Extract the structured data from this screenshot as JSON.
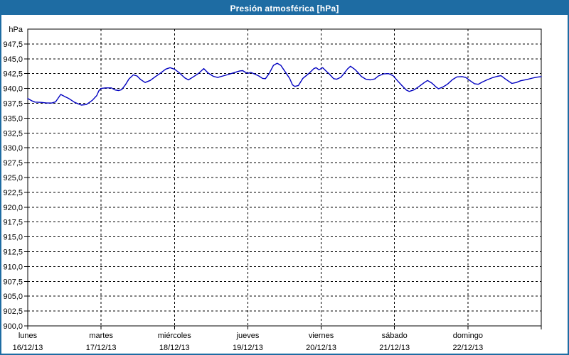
{
  "window": {
    "title": "Presión atmosférica [hPa]"
  },
  "accent_color": "#1e6ca3",
  "chart_data": {
    "type": "line",
    "title": "Presión atmosférica [hPa]",
    "unit_label": "hPa",
    "ylabel": "hPa",
    "xlabel": "",
    "ylim": [
      900,
      950
    ],
    "ytick_step": 2.5,
    "ytick_labels": [
      "947,5",
      "945,0",
      "942,5",
      "940,0",
      "937,5",
      "935,0",
      "932,5",
      "930,0",
      "927,5",
      "925,0",
      "922,5",
      "920,0",
      "917,5",
      "915,0",
      "912,5",
      "910,0",
      "907,5",
      "905,0",
      "902,5",
      "900,0"
    ],
    "grid": "dashed",
    "legend_position": "none",
    "line_color": "#0000c0",
    "x_axis": {
      "days": [
        {
          "name": "lunes",
          "date": "16/12/13"
        },
        {
          "name": "martes",
          "date": "17/12/13"
        },
        {
          "name": "miércoles",
          "date": "18/12/13"
        },
        {
          "name": "jueves",
          "date": "19/12/13"
        },
        {
          "name": "viernes",
          "date": "20/12/13"
        },
        {
          "name": "sábado",
          "date": "21/12/13"
        },
        {
          "name": "domingo",
          "date": "22/12/13"
        }
      ]
    },
    "series": [
      {
        "name": "Presión atmosférica",
        "color": "#0000c0",
        "x_unit": "days_from_start_of_monday",
        "points": [
          [
            0.0,
            938.3
          ],
          [
            0.06,
            937.9
          ],
          [
            0.1,
            937.7
          ],
          [
            0.18,
            937.65
          ],
          [
            0.26,
            937.55
          ],
          [
            0.33,
            937.55
          ],
          [
            0.38,
            937.75
          ],
          [
            0.45,
            939.0
          ],
          [
            0.51,
            938.6
          ],
          [
            0.56,
            938.3
          ],
          [
            0.64,
            937.65
          ],
          [
            0.73,
            937.2
          ],
          [
            0.8,
            937.3
          ],
          [
            0.88,
            938.0
          ],
          [
            0.94,
            938.8
          ],
          [
            0.97,
            939.6
          ],
          [
            1.0,
            940.0
          ],
          [
            1.06,
            940.1
          ],
          [
            1.14,
            940.1
          ],
          [
            1.19,
            939.75
          ],
          [
            1.24,
            939.65
          ],
          [
            1.28,
            939.8
          ],
          [
            1.33,
            940.6
          ],
          [
            1.38,
            941.6
          ],
          [
            1.44,
            942.3
          ],
          [
            1.49,
            942.1
          ],
          [
            1.54,
            941.5
          ],
          [
            1.6,
            941.0
          ],
          [
            1.67,
            941.35
          ],
          [
            1.74,
            942.0
          ],
          [
            1.81,
            942.6
          ],
          [
            1.88,
            943.25
          ],
          [
            1.94,
            943.5
          ],
          [
            2.0,
            943.25
          ],
          [
            2.06,
            942.7
          ],
          [
            2.14,
            941.8
          ],
          [
            2.19,
            941.45
          ],
          [
            2.25,
            941.9
          ],
          [
            2.33,
            942.55
          ],
          [
            2.4,
            943.35
          ],
          [
            2.46,
            942.6
          ],
          [
            2.53,
            942.05
          ],
          [
            2.59,
            941.85
          ],
          [
            2.66,
            942.1
          ],
          [
            2.73,
            942.35
          ],
          [
            2.81,
            942.65
          ],
          [
            2.89,
            942.95
          ],
          [
            2.93,
            943.0
          ],
          [
            2.97,
            942.7
          ],
          [
            3.0,
            942.55
          ],
          [
            3.04,
            942.7
          ],
          [
            3.09,
            942.45
          ],
          [
            3.15,
            942.1
          ],
          [
            3.2,
            941.7
          ],
          [
            3.24,
            941.65
          ],
          [
            3.29,
            942.5
          ],
          [
            3.35,
            943.9
          ],
          [
            3.4,
            944.25
          ],
          [
            3.45,
            943.9
          ],
          [
            3.51,
            942.8
          ],
          [
            3.57,
            941.7
          ],
          [
            3.61,
            940.6
          ],
          [
            3.64,
            940.35
          ],
          [
            3.69,
            940.5
          ],
          [
            3.75,
            941.7
          ],
          [
            3.83,
            942.5
          ],
          [
            3.9,
            943.35
          ],
          [
            3.93,
            943.5
          ],
          [
            3.97,
            943.15
          ],
          [
            4.02,
            943.5
          ],
          [
            4.07,
            942.9
          ],
          [
            4.11,
            942.45
          ],
          [
            4.17,
            941.65
          ],
          [
            4.21,
            941.55
          ],
          [
            4.27,
            941.9
          ],
          [
            4.31,
            942.5
          ],
          [
            4.36,
            943.3
          ],
          [
            4.4,
            943.75
          ],
          [
            4.46,
            943.2
          ],
          [
            4.5,
            942.7
          ],
          [
            4.55,
            942.0
          ],
          [
            4.61,
            941.55
          ],
          [
            4.67,
            941.45
          ],
          [
            4.73,
            941.6
          ],
          [
            4.78,
            942.1
          ],
          [
            4.85,
            942.45
          ],
          [
            4.92,
            942.5
          ],
          [
            4.98,
            942.15
          ],
          [
            5.04,
            941.3
          ],
          [
            5.1,
            940.5
          ],
          [
            5.16,
            939.75
          ],
          [
            5.2,
            939.5
          ],
          [
            5.27,
            939.8
          ],
          [
            5.33,
            940.3
          ],
          [
            5.4,
            940.95
          ],
          [
            5.45,
            941.35
          ],
          [
            5.51,
            940.9
          ],
          [
            5.57,
            940.2
          ],
          [
            5.6,
            939.95
          ],
          [
            5.66,
            940.25
          ],
          [
            5.72,
            940.7
          ],
          [
            5.79,
            941.5
          ],
          [
            5.85,
            941.95
          ],
          [
            5.92,
            942.0
          ],
          [
            5.97,
            941.85
          ],
          [
            6.03,
            941.3
          ],
          [
            6.09,
            940.8
          ],
          [
            6.14,
            940.7
          ],
          [
            6.2,
            941.1
          ],
          [
            6.26,
            941.45
          ],
          [
            6.33,
            941.8
          ],
          [
            6.4,
            942.05
          ],
          [
            6.45,
            942.15
          ],
          [
            6.51,
            941.6
          ],
          [
            6.57,
            941.1
          ],
          [
            6.6,
            940.85
          ],
          [
            6.66,
            941.0
          ],
          [
            6.72,
            941.3
          ],
          [
            6.8,
            941.5
          ],
          [
            6.88,
            941.75
          ],
          [
            6.94,
            941.9
          ],
          [
            7.0,
            942.0
          ]
        ]
      }
    ]
  }
}
